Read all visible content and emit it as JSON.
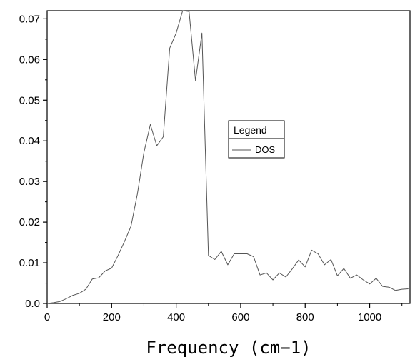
{
  "chart_data": {
    "type": "line",
    "title": "",
    "xlabel": "Frequency (cm−1)",
    "ylabel": "",
    "xlim": [
      0,
      1125
    ],
    "ylim": [
      0,
      0.072
    ],
    "xticks": [
      0,
      200,
      400,
      600,
      800,
      1000
    ],
    "xtick_labels": [
      "0",
      "200",
      "400",
      "600",
      "800",
      "1000"
    ],
    "yticks": [
      0,
      0.01,
      0.02,
      0.03,
      0.04,
      0.05,
      0.06,
      0.07
    ],
    "ytick_labels": [
      "0.0",
      "0.01",
      "0.02",
      "0.03",
      "0.04",
      "0.05",
      "0.06",
      "0.07"
    ],
    "grid": false,
    "legend": {
      "title": "Legend",
      "placement": "center-right"
    },
    "series": [
      {
        "name": "DOS",
        "color": "#555555",
        "x": [
          0,
          20,
          40,
          60,
          80,
          100,
          120,
          140,
          160,
          180,
          200,
          220,
          240,
          260,
          280,
          300,
          320,
          340,
          360,
          380,
          400,
          420,
          440,
          460,
          480,
          500,
          520,
          540,
          560,
          580,
          600,
          620,
          640,
          660,
          680,
          700,
          720,
          740,
          760,
          780,
          800,
          820,
          840,
          860,
          880,
          900,
          920,
          940,
          960,
          980,
          1000,
          1020,
          1040,
          1060,
          1080,
          1100,
          1120
        ],
        "values": [
          0.0,
          0.0002,
          0.0005,
          0.0012,
          0.002,
          0.0025,
          0.0035,
          0.006,
          0.0063,
          0.008,
          0.0087,
          0.0118,
          0.0153,
          0.019,
          0.027,
          0.0372,
          0.044,
          0.0388,
          0.041,
          0.0628,
          0.0665,
          0.072,
          0.0718,
          0.0548,
          0.0665,
          0.0118,
          0.0108,
          0.0128,
          0.0095,
          0.0122,
          0.0122,
          0.0122,
          0.0115,
          0.007,
          0.0075,
          0.0058,
          0.0075,
          0.0065,
          0.0085,
          0.0107,
          0.009,
          0.0131,
          0.0122,
          0.0095,
          0.0108,
          0.0068,
          0.0086,
          0.0062,
          0.007,
          0.0058,
          0.0048,
          0.0062,
          0.0042,
          0.004,
          0.0032,
          0.0035,
          0.0036
        ]
      }
    ]
  }
}
